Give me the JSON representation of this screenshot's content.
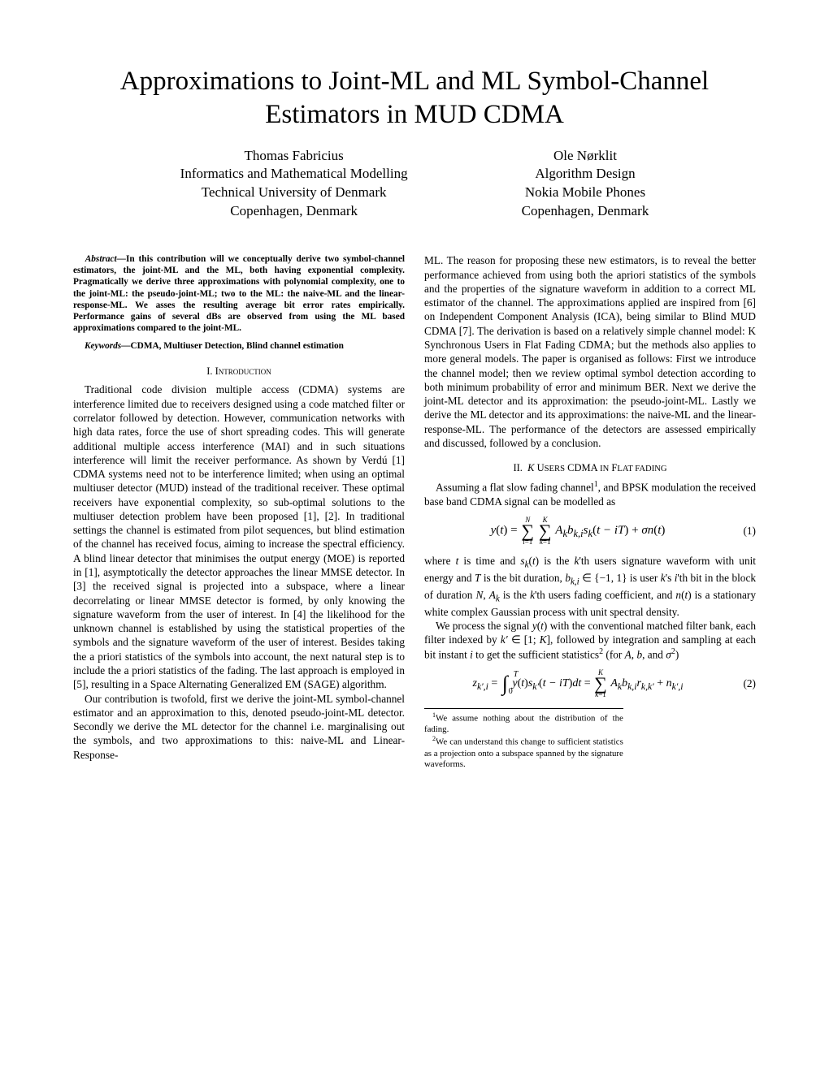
{
  "title": "Approximations to Joint-ML and ML Symbol-Channel Estimators in MUD CDMA",
  "authors": [
    {
      "name": "Thomas Fabricius",
      "lines": [
        "Informatics and Mathematical Modelling",
        "Technical University of Denmark",
        "Copenhagen, Denmark"
      ]
    },
    {
      "name": "Ole Nørklit",
      "lines": [
        "Algorithm Design",
        "Nokia Mobile Phones",
        "Copenhagen, Denmark"
      ]
    }
  ],
  "abstract_label": "Abstract—",
  "abstract": "In this contribution will we conceptually derive two symbol-channel estimators, the joint-ML and the ML, both having exponential complexity. Pragmatically we derive three approximations with polynomial complexity, one to the joint-ML: the pseudo-joint-ML; two to the ML: the naive-ML and the linear-response-ML. We asses the resulting average bit error rates empirically. Performance gains of several dBs are observed from using the ML based approximations compared to the joint-ML.",
  "keywords_label": "Keywords—",
  "keywords": "CDMA, Multiuser Detection, Blind channel estimation",
  "section1_heading": "I.  Introduction",
  "intro_p1": "Traditional code division multiple access (CDMA) systems are interference limited due to receivers designed using a code matched filter or correlator followed by detection. However, communication networks with high data rates, force the use of short spreading codes. This will generate additional multiple access interference (MAI) and in such situations interference will limit the receiver performance. As shown by Verdú [1] CDMA systems need not to be interference limited; when using an optimal multiuser detector (MUD) instead of the traditional receiver. These optimal receivers have exponential complexity, so sub-optimal solutions to the multiuser detection problem have been proposed [1], [2]. In traditional settings the channel is estimated from pilot sequences, but blind estimation of the channel has received focus, aiming to increase the spectral efficiency. A blind linear detector that minimises the output energy (MOE) is reported in [1], asymptotically the detector approaches the linear MMSE detector. In [3] the received signal is projected into a subspace, where a linear decorrelating or linear MMSE detector is formed, by only knowing the signature waveform from the user of interest. In [4] the likelihood for the unknown channel is established by using the statistical properties of the symbols and the signature waveform of the user of interest. Besides taking the a priori statistics of the symbols into account, the next natural step is to include the a priori statistics of the fading. The last approach is employed in [5], resulting in a Space Alternating Generalized EM (SAGE) algorithm.",
  "intro_p2": "Our contribution is twofold, first we derive the joint-ML symbol-channel estimator and an approximation to this, denoted pseudo-joint-ML detector. Secondly we derive the ML detector for the channel i.e. marginalising out the symbols, and two approximations to this: naive-ML and Linear-Response-",
  "right_p1": "ML. The reason for proposing these new estimators, is to reveal the better performance achieved from using both the apriori statistics of the symbols and the properties of the signature waveform in addition to a correct ML estimator of the channel. The approximations applied are inspired from [6] on Independent Component Analysis (ICA), being similar to Blind MUD CDMA [7]. The derivation is based on a relatively simple channel model: K Synchronous Users in Flat Fading CDMA; but the methods also applies to more general models. The paper is organised as follows: First we introduce the channel model; then we review optimal symbol detection according to both minimum probability of error and minimum BER. Next we derive the joint-ML detector and its approximation: the pseudo-joint-ML. Lastly we derive the ML detector and its approximations: the naive-ML and the linear-response-ML. The performance of the detectors are assessed empirically and discussed, followed by a conclusion.",
  "section2_heading": "II.  K Users CDMA in Flat fading",
  "sec2_p1_a": "Assuming a flat slow fading channel",
  "sec2_p1_b": ", and BPSK modulation the received base band CDMA signal can be modelled as",
  "eq1_num": "(1)",
  "sec2_p2": "where t is time and sₖ(t) is the k'th users signature waveform with unit energy and T is the bit duration, bₖ,ᵢ ∈ {−1, 1} is user k's i'th bit in the block of duration N, Aₖ is the k'th users fading coefficient, and n(t) is a stationary white complex Gaussian process with unit spectral density.",
  "sec2_p3_a": "We process the signal y(t) with the conventional matched filter bank, each filter indexed by k′ ∈ [1; K], followed by integration and sampling at each bit instant i to get the sufficient statistics",
  "sec2_p3_b": " (for A, b, and σ²)",
  "eq2_num": "(2)",
  "footnote1": "We assume nothing about the distribution of the fading.",
  "footnote2": "We can understand this change to sufficient statistics as a projection onto a subspace spanned by the signature waveforms."
}
